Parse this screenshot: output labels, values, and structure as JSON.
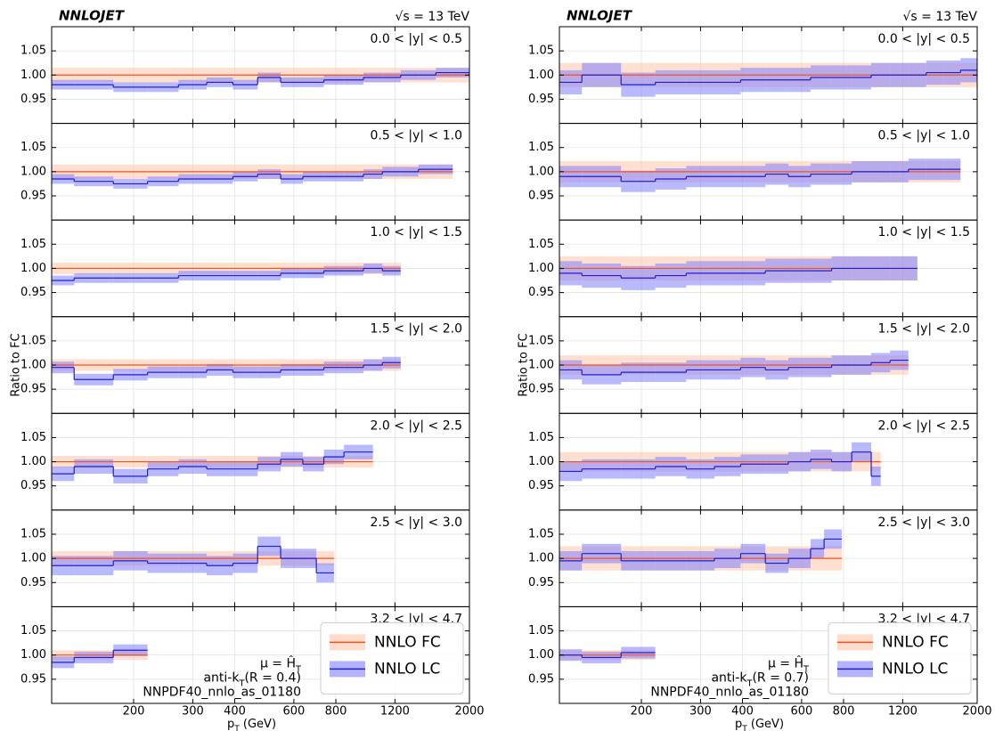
{
  "chart_data": [
    {
      "type": "step",
      "title": "NNLOJET",
      "energy": "√s = 13 TeV",
      "ylabel": "Ratio to FC",
      "xlabel": {
        "main": "p",
        "sub": "T",
        "rest": " (GeV)"
      },
      "xlim": [
        114,
        2000
      ],
      "log_x": true,
      "xticks": [
        200,
        300,
        400,
        600,
        800,
        1200,
        2000
      ],
      "ylim": [
        0.9,
        1.1
      ],
      "yticks": [
        0.95,
        {
          "value": 1,
          "label": "1.00"
        },
        1.05
      ],
      "grid": true,
      "legend": "lower right",
      "annotations": [
        {
          "main": "μ = Ĥ",
          "sub": "T",
          "rest": ""
        },
        {
          "main": "anti-k",
          "sub": "T",
          "rest": "(R = 0.4)"
        },
        {
          "main": "NNPDF40_nnlo_as_01180",
          "sub": "",
          "rest": ""
        }
      ],
      "series": [
        {
          "name": "NNLO FC",
          "color": "#f4511e",
          "band_color": "#ffc4aa"
        },
        {
          "name": "NNLO LC",
          "color": "#1f1fcf",
          "band_color": "#8080ff"
        }
      ],
      "panels": [
        {
          "label": "0.0 < |y| < 0.5",
          "bins": [
            114,
            133,
            174,
            220,
            272,
            330,
            395,
            468,
            548,
            638,
            737,
            846,
            967,
            1101,
            1248,
            1410,
            1588,
            1784,
            2000
          ],
          "fc": [
            1,
            1,
            1,
            1,
            1,
            1,
            1,
            1,
            1,
            1,
            1,
            1,
            1,
            1,
            1,
            1,
            1,
            1
          ],
          "fc_err": 0.015,
          "lc": [
            0.98,
            0.98,
            0.975,
            0.975,
            0.98,
            0.985,
            0.98,
            0.995,
            0.985,
            0.985,
            0.99,
            0.99,
            0.995,
            0.995,
            1.0,
            1.0,
            1.005,
            1.005
          ],
          "lc_err": 0.01
        },
        {
          "label": "0.5 < |y| < 1.0",
          "bins": [
            114,
            133,
            174,
            220,
            272,
            330,
            395,
            468,
            548,
            638,
            737,
            846,
            967,
            1101,
            1248,
            1410,
            1588,
            1784
          ],
          "fc": [
            1,
            1,
            1,
            1,
            1,
            1,
            1,
            1,
            1,
            1,
            1,
            1,
            1,
            1,
            1,
            1,
            1
          ],
          "fc_err": 0.015,
          "lc": [
            0.985,
            0.98,
            0.975,
            0.98,
            0.985,
            0.985,
            0.99,
            0.995,
            0.985,
            0.99,
            0.99,
            0.99,
            0.995,
            1.0,
            1.0,
            1.005,
            1.005
          ],
          "lc_err": 0.01
        },
        {
          "label": "1.0 < |y| < 1.5",
          "bins": [
            114,
            133,
            174,
            220,
            272,
            330,
            395,
            468,
            548,
            638,
            737,
            846,
            967,
            1101,
            1248
          ],
          "fc": [
            1,
            1,
            1,
            1,
            1,
            1,
            1,
            1,
            1,
            1,
            1,
            1,
            1,
            1
          ],
          "fc_err": 0.012,
          "lc": [
            0.975,
            0.98,
            0.98,
            0.98,
            0.985,
            0.985,
            0.985,
            0.985,
            0.99,
            0.99,
            0.995,
            0.995,
            1.0,
            0.995
          ],
          "lc_err": 0.01
        },
        {
          "label": "1.5 < |y| < 2.0",
          "bins": [
            114,
            133,
            174,
            220,
            272,
            330,
            395,
            468,
            548,
            638,
            737,
            846,
            967,
            1101,
            1248
          ],
          "fc": [
            1,
            1,
            1,
            1,
            1,
            1,
            1,
            1,
            1,
            1,
            1,
            1,
            1,
            1
          ],
          "fc_err": 0.012,
          "lc": [
            0.995,
            0.97,
            0.98,
            0.985,
            0.985,
            0.99,
            0.985,
            0.985,
            0.99,
            0.99,
            0.995,
            0.995,
            1.0,
            1.005
          ],
          "lc_err": 0.012
        },
        {
          "label": "2.0 < |y| < 2.5",
          "bins": [
            114,
            133,
            174,
            220,
            272,
            330,
            395,
            468,
            548,
            638,
            737,
            846,
            1032
          ],
          "fc": [
            1,
            1,
            1,
            1,
            1,
            1,
            1,
            1,
            1,
            1,
            1,
            1
          ],
          "fc_err": 0.012,
          "lc": [
            0.975,
            0.99,
            0.97,
            0.985,
            0.99,
            0.985,
            0.985,
            0.995,
            1.005,
            0.995,
            1.01,
            1.02
          ],
          "lc_err": 0.015
        },
        {
          "label": "2.5 < |y| < 3.0",
          "bins": [
            114,
            133,
            174,
            220,
            272,
            330,
            395,
            468,
            548,
            638,
            700,
            790
          ],
          "fc": [
            1,
            1,
            1,
            1,
            1,
            1,
            1,
            1,
            1,
            1,
            1
          ],
          "fc_err": 0.015,
          "lc": [
            0.985,
            0.985,
            0.995,
            0.99,
            0.99,
            0.985,
            0.99,
            1.025,
            1.0,
            1.0,
            0.97
          ],
          "lc_err": 0.02
        },
        {
          "label": "3.2 < |y| < 4.7",
          "bins": [
            114,
            133,
            174,
            220
          ],
          "fc": [
            1,
            1,
            1
          ],
          "fc_err": 0.01,
          "lc": [
            0.985,
            0.995,
            1.01
          ],
          "lc_err": 0.012
        }
      ]
    },
    {
      "type": "step",
      "title": "NNLOJET",
      "energy": "√s = 13 TeV",
      "ylabel": "Ratio to FC",
      "xlabel": {
        "main": "p",
        "sub": "T",
        "rest": " (GeV)"
      },
      "xlim": [
        114,
        2000
      ],
      "log_x": true,
      "xticks": [
        200,
        300,
        400,
        600,
        800,
        1200,
        2000
      ],
      "ylim": [
        0.9,
        1.1
      ],
      "yticks": [
        0.95,
        {
          "value": 1,
          "label": "1.00"
        },
        1.05
      ],
      "grid": true,
      "legend": "lower right",
      "annotations": [
        {
          "main": "μ = Ĥ",
          "sub": "T",
          "rest": ""
        },
        {
          "main": "anti-k",
          "sub": "T",
          "rest": "(R = 0.7)"
        },
        {
          "main": "NNPDF40_nnlo_as_01180",
          "sub": "",
          "rest": ""
        }
      ],
      "series": [
        {
          "name": "NNLO FC",
          "color": "#f4511e",
          "band_color": "#ffc4aa"
        },
        {
          "name": "NNLO LC",
          "color": "#1f1fcf",
          "band_color": "#8080ff"
        }
      ],
      "panels": [
        {
          "label": "0.0 < |y| < 0.5",
          "bins": [
            114,
            133,
            174,
            220,
            272,
            330,
            395,
            468,
            548,
            638,
            737,
            846,
            967,
            1101,
            1248,
            1410,
            1588,
            1784,
            2000
          ],
          "fc": [
            1,
            1,
            1,
            1,
            1,
            1,
            1,
            1,
            1,
            1,
            1,
            1,
            1,
            1,
            1,
            1,
            1,
            1
          ],
          "fc_err": 0.025,
          "lc": [
            0.985,
            1.0,
            0.98,
            0.985,
            0.985,
            0.985,
            0.99,
            0.99,
            0.99,
            0.995,
            0.995,
            0.995,
            1.0,
            1.0,
            1.0,
            1.005,
            1.005,
            1.01
          ],
          "lc_err": 0.025
        },
        {
          "label": "0.5 < |y| < 1.0",
          "bins": [
            114,
            133,
            174,
            220,
            272,
            330,
            395,
            468,
            548,
            638,
            737,
            846,
            967,
            1101,
            1248,
            1410,
            1588,
            1784
          ],
          "fc": [
            1,
            1,
            1,
            1,
            1,
            1,
            1,
            1,
            1,
            1,
            1,
            1,
            1,
            1,
            1,
            1,
            1
          ],
          "fc_err": 0.022,
          "lc": [
            0.99,
            0.99,
            0.98,
            0.985,
            0.99,
            0.99,
            0.99,
            0.995,
            0.99,
            0.995,
            0.995,
            1.0,
            1.0,
            1.0,
            1.005,
            1.005,
            1.005
          ],
          "lc_err": 0.022
        },
        {
          "label": "1.0 < |y| < 1.5",
          "bins": [
            114,
            133,
            174,
            220,
            272,
            330,
            395,
            468,
            548,
            638,
            737,
            846,
            967,
            1101,
            1327
          ],
          "fc": [
            1,
            1,
            1,
            1,
            1,
            1,
            1,
            1,
            1,
            1,
            1,
            1,
            1,
            1
          ],
          "fc_err": 0.025,
          "lc": [
            0.99,
            0.985,
            0.98,
            0.985,
            0.99,
            0.99,
            0.99,
            0.995,
            0.995,
            0.995,
            1.0,
            1.0,
            1.0,
            1.0
          ],
          "lc_err": 0.025
        },
        {
          "label": "1.5 < |y| < 2.0",
          "bins": [
            114,
            133,
            174,
            220,
            272,
            330,
            395,
            468,
            548,
            638,
            737,
            846,
            967,
            1101,
            1248
          ],
          "fc": [
            1,
            1,
            1,
            1,
            1,
            1,
            1,
            1,
            1,
            1,
            1,
            1,
            1,
            1
          ],
          "fc_err": 0.02,
          "lc": [
            0.99,
            0.98,
            0.985,
            0.985,
            0.99,
            0.99,
            0.995,
            0.99,
            0.995,
            0.995,
            1.0,
            1.0,
            1.005,
            1.01
          ],
          "lc_err": 0.02
        },
        {
          "label": "2.0 < |y| < 2.5",
          "bins": [
            114,
            133,
            174,
            220,
            272,
            330,
            395,
            468,
            548,
            638,
            737,
            846,
            967,
            1032
          ],
          "fc": [
            1,
            1,
            1,
            1,
            1,
            1,
            1,
            1,
            1,
            1,
            1,
            1,
            1
          ],
          "fc_err": 0.02,
          "lc": [
            0.98,
            0.985,
            0.985,
            0.99,
            0.985,
            0.99,
            0.995,
            0.995,
            1.0,
            1.005,
            1.0,
            1.02,
            0.97
          ],
          "lc_err": 0.02
        },
        {
          "label": "2.5 < |y| < 3.0",
          "bins": [
            114,
            133,
            174,
            220,
            272,
            330,
            395,
            468,
            548,
            638,
            700,
            790
          ],
          "fc": [
            1,
            1,
            1,
            1,
            1,
            1,
            1,
            1,
            1,
            1,
            1
          ],
          "fc_err": 0.025,
          "lc": [
            0.995,
            1.01,
            0.995,
            0.995,
            0.995,
            1.0,
            1.01,
            0.99,
            1.0,
            1.02,
            1.04
          ],
          "lc_err": 0.02
        },
        {
          "label": "3.2 < |y| < 4.7",
          "bins": [
            114,
            133,
            174,
            220
          ],
          "fc": [
            1,
            1,
            1
          ],
          "fc_err": 0.01,
          "lc": [
            1.0,
            0.995,
            1.005
          ],
          "lc_err": 0.012
        }
      ]
    }
  ]
}
